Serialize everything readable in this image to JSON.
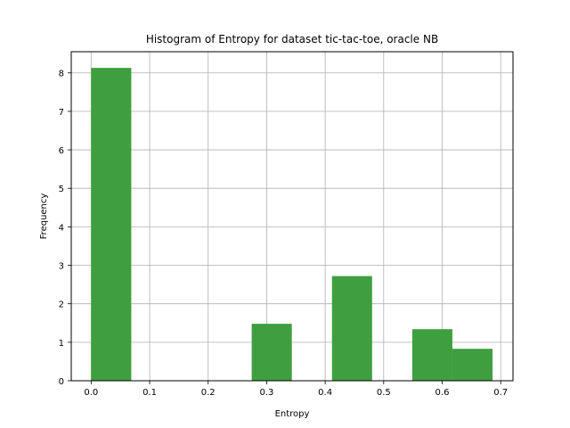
{
  "chart_data": {
    "type": "bar",
    "title": "Histogram of Entropy for dataset tic-tac-toe, oracle NB",
    "xlabel": "Entropy",
    "ylabel": "Frequency",
    "xlim": [
      -0.034,
      0.721
    ],
    "ylim": [
      0,
      8.55
    ],
    "grid": true,
    "bar_color": "#3f9f3f",
    "bins": [
      {
        "x0": 0.0,
        "x1": 0.0686,
        "value": 8.13
      },
      {
        "x0": 0.0686,
        "x1": 0.1372,
        "value": 0
      },
      {
        "x0": 0.1372,
        "x1": 0.2058,
        "value": 0
      },
      {
        "x0": 0.2058,
        "x1": 0.2744,
        "value": 0
      },
      {
        "x0": 0.2744,
        "x1": 0.343,
        "value": 1.48
      },
      {
        "x0": 0.343,
        "x1": 0.4116,
        "value": 0
      },
      {
        "x0": 0.4116,
        "x1": 0.4802,
        "value": 2.72
      },
      {
        "x0": 0.4802,
        "x1": 0.5488,
        "value": 0
      },
      {
        "x0": 0.5488,
        "x1": 0.6174,
        "value": 1.34
      },
      {
        "x0": 0.6174,
        "x1": 0.686,
        "value": 0.83
      }
    ],
    "xticks": [
      {
        "value": 0.0,
        "label": "0.0"
      },
      {
        "value": 0.1,
        "label": "0.1"
      },
      {
        "value": 0.2,
        "label": "0.2"
      },
      {
        "value": 0.3,
        "label": "0.3"
      },
      {
        "value": 0.4,
        "label": "0.4"
      },
      {
        "value": 0.5,
        "label": "0.5"
      },
      {
        "value": 0.6,
        "label": "0.6"
      },
      {
        "value": 0.7,
        "label": "0.7"
      }
    ],
    "yticks": [
      {
        "value": 0,
        "label": "0"
      },
      {
        "value": 1,
        "label": "1"
      },
      {
        "value": 2,
        "label": "2"
      },
      {
        "value": 3,
        "label": "3"
      },
      {
        "value": 4,
        "label": "4"
      },
      {
        "value": 5,
        "label": "5"
      },
      {
        "value": 6,
        "label": "6"
      },
      {
        "value": 7,
        "label": "7"
      },
      {
        "value": 8,
        "label": "8"
      }
    ]
  }
}
